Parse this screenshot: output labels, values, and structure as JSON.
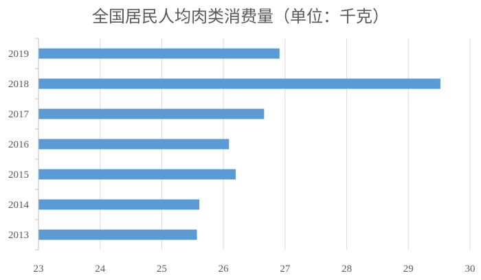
{
  "chart_data": {
    "type": "bar",
    "orientation": "horizontal",
    "title": "全国居民人均肉类消费量（单位：千克）",
    "categories": [
      "2013",
      "2014",
      "2015",
      "2016",
      "2017",
      "2018",
      "2019"
    ],
    "values": [
      25.57,
      25.61,
      26.2,
      26.09,
      26.66,
      29.52,
      26.91
    ],
    "xlim": [
      23,
      30
    ],
    "x_ticks": [
      "23",
      "24",
      "25",
      "26",
      "27",
      "28",
      "29",
      "30"
    ],
    "grid": "vertical",
    "legend": "none",
    "colors": {
      "bar": "#5b9bd5",
      "grid": "#d9d9d9",
      "axis": "#bfbfbf",
      "text": "#595959"
    }
  }
}
